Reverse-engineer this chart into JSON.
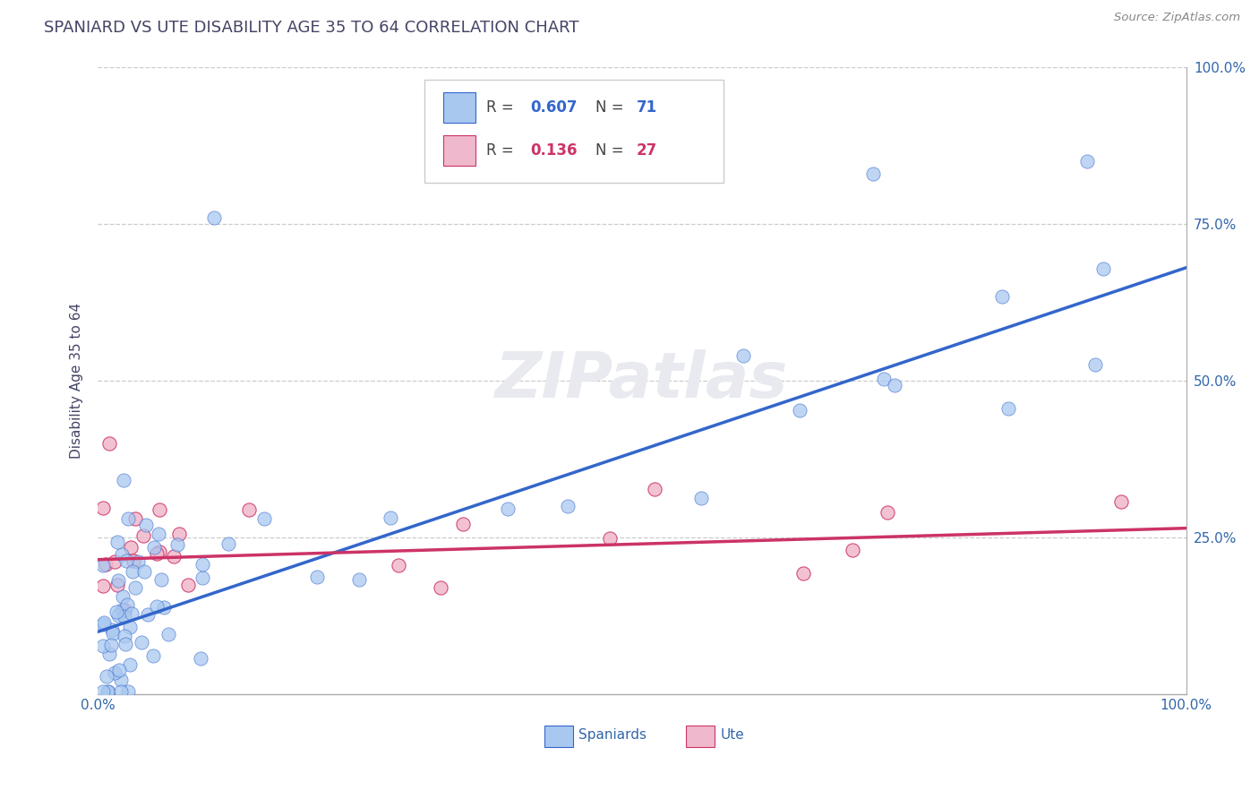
{
  "title": "SPANIARD VS UTE DISABILITY AGE 35 TO 64 CORRELATION CHART",
  "source_text": "Source: ZipAtlas.com",
  "ylabel": "Disability Age 35 to 64",
  "xlim": [
    0.0,
    1.0
  ],
  "ylim": [
    0.0,
    1.0
  ],
  "grid_color": "#cccccc",
  "background_color": "#ffffff",
  "spaniard_color": "#a8c8f0",
  "ute_color": "#f0b8cc",
  "spaniard_line_color": "#3366cc",
  "ute_line_color": "#cc3366",
  "legend_R_spaniard": "0.607",
  "legend_N_spaniard": "71",
  "legend_R_ute": "0.136",
  "legend_N_ute": "27",
  "title_color": "#444466",
  "label_color": "#3366aa",
  "axis_color": "#aaaaaa",
  "watermark": "ZIPatlas",
  "watermark_color": "#e8eaf0"
}
